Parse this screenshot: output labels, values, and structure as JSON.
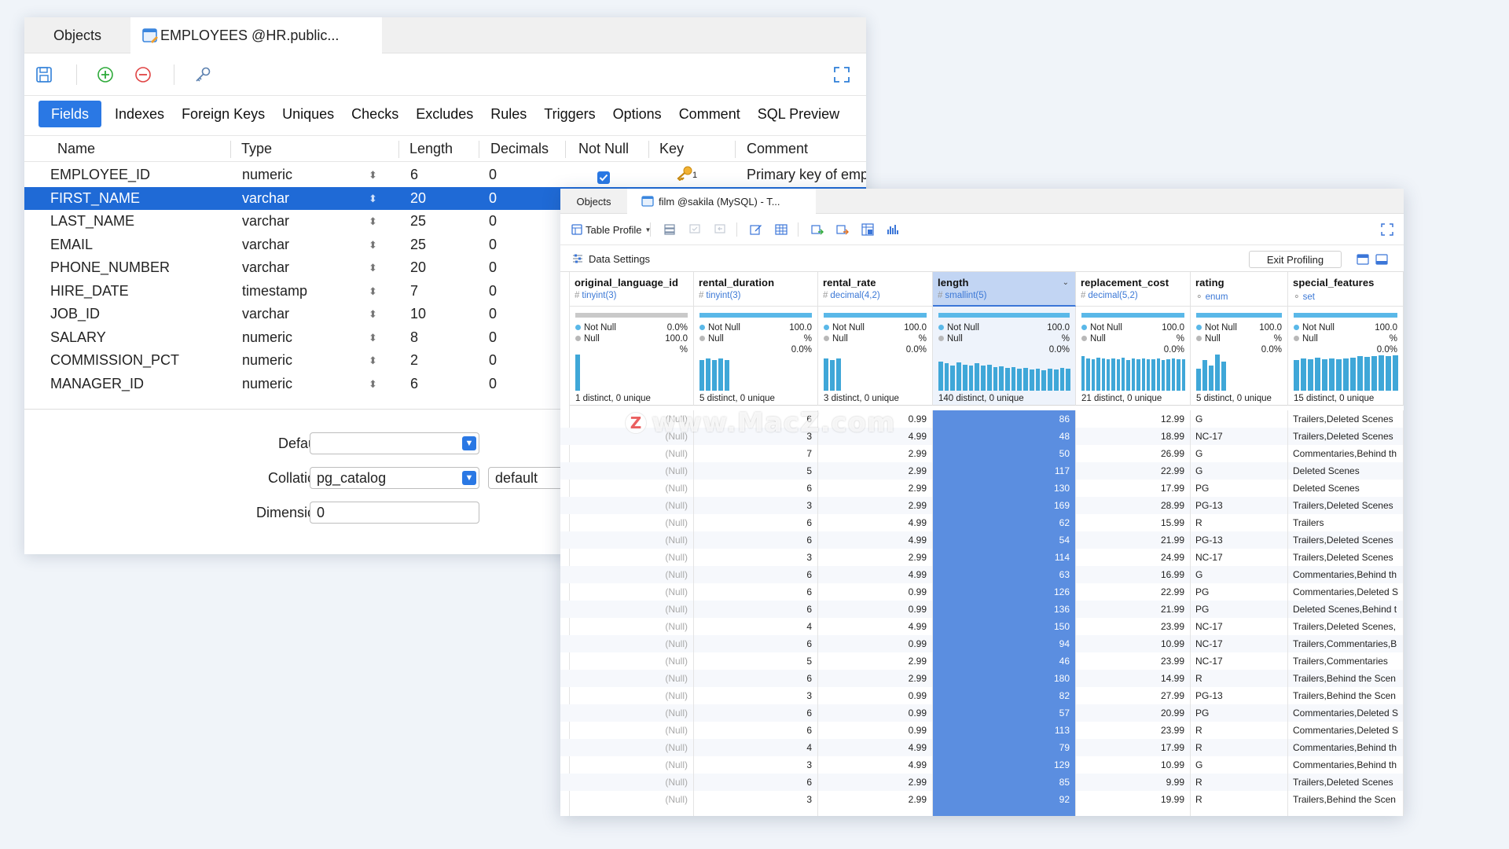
{
  "win1": {
    "tabs": {
      "objects": "Objects",
      "employees": "EMPLOYEES @HR.public..."
    },
    "subtabs": [
      "Fields",
      "Indexes",
      "Foreign Keys",
      "Uniques",
      "Checks",
      "Excludes",
      "Rules",
      "Triggers",
      "Options",
      "Comment",
      "SQL Preview"
    ],
    "columns": [
      "Name",
      "Type",
      "Length",
      "Decimals",
      "Not Null",
      "Key",
      "Comment"
    ],
    "fields": [
      {
        "name": "EMPLOYEE_ID",
        "type": "numeric",
        "length": "6",
        "decimals": "0",
        "comment": "Primary key of empt"
      },
      {
        "name": "FIRST_NAME",
        "type": "varchar",
        "length": "20",
        "decimals": "0",
        "comment": ""
      },
      {
        "name": "LAST_NAME",
        "type": "varchar",
        "length": "25",
        "decimals": "0",
        "comment": ""
      },
      {
        "name": "EMAIL",
        "type": "varchar",
        "length": "25",
        "decimals": "0",
        "comment": ""
      },
      {
        "name": "PHONE_NUMBER",
        "type": "varchar",
        "length": "20",
        "decimals": "0",
        "comment": ""
      },
      {
        "name": "HIRE_DATE",
        "type": "timestamp",
        "length": "7",
        "decimals": "0",
        "comment": ""
      },
      {
        "name": "JOB_ID",
        "type": "varchar",
        "length": "10",
        "decimals": "0",
        "comment": ""
      },
      {
        "name": "SALARY",
        "type": "numeric",
        "length": "8",
        "decimals": "0",
        "comment": ""
      },
      {
        "name": "COMMISSION_PCT",
        "type": "numeric",
        "length": "2",
        "decimals": "0",
        "comment": ""
      },
      {
        "name": "MANAGER_ID",
        "type": "numeric",
        "length": "6",
        "decimals": "0",
        "comment": ""
      }
    ],
    "key_index_label": "1",
    "props": {
      "default_label": "Default:",
      "default_value": "",
      "collation_label": "Collation:",
      "collation_value": "pg_catalog",
      "collation_extra": "default",
      "dimension_label": "Dimension:",
      "dimension_value": "0"
    }
  },
  "win2": {
    "tabs": {
      "objects": "Objects",
      "film": "film @sakila (MySQL) - T..."
    },
    "table_profile": "Table Profile",
    "data_settings": "Data Settings",
    "exit_profiling": "Exit Profiling",
    "columns": [
      {
        "name": "original_language_id",
        "type": "tinyint(3)",
        "notnull": "0.0%",
        "null": "100.0",
        "null_pct": "%",
        "distinct": "1 distinct, 0 unique"
      },
      {
        "name": "rental_duration",
        "type": "tinyint(3)",
        "notnull": "100.0",
        "notnull_pct": "%",
        "null": "0.0%",
        "distinct": "5 distinct, 0 unique"
      },
      {
        "name": "rental_rate",
        "type": "decimal(4,2)",
        "notnull": "100.0",
        "notnull_pct": "%",
        "null": "0.0%",
        "distinct": "3 distinct, 0 unique"
      },
      {
        "name": "length",
        "type": "smallint(5)",
        "notnull": "100.0",
        "notnull_pct": "%",
        "null": "0.0%",
        "distinct": "140 distinct, 0 unique"
      },
      {
        "name": "replacement_cost",
        "type": "decimal(5,2)",
        "notnull": "100.0",
        "notnull_pct": "%",
        "null": "0.0%",
        "distinct": "21 distinct, 0 unique"
      },
      {
        "name": "rating",
        "type": "enum",
        "notnull": "100.0",
        "notnull_pct": "%",
        "null": "0.0%",
        "distinct": "5 distinct, 0 unique"
      },
      {
        "name": "special_features",
        "type": "set",
        "notnull": "100.0",
        "notnull_pct": "%",
        "null": "0.0%",
        "distinct": "15 distinct, 0 unique"
      }
    ],
    "legend": {
      "not_null": "Not Null",
      "null": "Null"
    },
    "null_text": "(Null)",
    "rows": [
      [
        "6",
        "0.99",
        "86",
        "12.99",
        "G",
        "Trailers,Deleted Scenes"
      ],
      [
        "3",
        "4.99",
        "48",
        "18.99",
        "NC-17",
        "Trailers,Deleted Scenes"
      ],
      [
        "7",
        "2.99",
        "50",
        "26.99",
        "G",
        "Commentaries,Behind th"
      ],
      [
        "5",
        "2.99",
        "117",
        "22.99",
        "G",
        "Deleted Scenes"
      ],
      [
        "6",
        "2.99",
        "130",
        "17.99",
        "PG",
        "Deleted Scenes"
      ],
      [
        "3",
        "2.99",
        "169",
        "28.99",
        "PG-13",
        "Trailers,Deleted Scenes"
      ],
      [
        "6",
        "4.99",
        "62",
        "15.99",
        "R",
        "Trailers"
      ],
      [
        "6",
        "4.99",
        "54",
        "21.99",
        "PG-13",
        "Trailers,Deleted Scenes"
      ],
      [
        "3",
        "2.99",
        "114",
        "24.99",
        "NC-17",
        "Trailers,Deleted Scenes"
      ],
      [
        "6",
        "4.99",
        "63",
        "16.99",
        "G",
        "Commentaries,Behind th"
      ],
      [
        "6",
        "0.99",
        "126",
        "22.99",
        "PG",
        "Commentaries,Deleted S"
      ],
      [
        "6",
        "0.99",
        "136",
        "21.99",
        "PG",
        "Deleted Scenes,Behind t"
      ],
      [
        "4",
        "4.99",
        "150",
        "23.99",
        "NC-17",
        "Trailers,Deleted Scenes,"
      ],
      [
        "6",
        "0.99",
        "94",
        "10.99",
        "NC-17",
        "Trailers,Commentaries,B"
      ],
      [
        "5",
        "2.99",
        "46",
        "23.99",
        "NC-17",
        "Trailers,Commentaries"
      ],
      [
        "6",
        "2.99",
        "180",
        "14.99",
        "R",
        "Trailers,Behind the Scen"
      ],
      [
        "3",
        "0.99",
        "82",
        "27.99",
        "PG-13",
        "Trailers,Behind the Scen"
      ],
      [
        "6",
        "0.99",
        "57",
        "20.99",
        "PG",
        "Commentaries,Deleted S"
      ],
      [
        "6",
        "0.99",
        "113",
        "23.99",
        "R",
        "Commentaries,Deleted S"
      ],
      [
        "4",
        "4.99",
        "79",
        "17.99",
        "R",
        "Commentaries,Behind th"
      ],
      [
        "3",
        "4.99",
        "129",
        "10.99",
        "G",
        "Commentaries,Behind th"
      ],
      [
        "6",
        "2.99",
        "85",
        "9.99",
        "R",
        "Trailers,Deleted Scenes"
      ],
      [
        "3",
        "2.99",
        "92",
        "19.99",
        "R",
        "Trailers,Behind the Scen"
      ]
    ],
    "histograms": {
      "original_language_id": [
        1.0
      ],
      "rental_duration": [
        0.85,
        0.9,
        0.85,
        0.9,
        0.85
      ],
      "rental_rate": [
        0.9,
        0.85,
        0.9
      ],
      "length": [
        0.8,
        0.75,
        0.7,
        0.78,
        0.72,
        0.7,
        0.75,
        0.7,
        0.72,
        0.65,
        0.68,
        0.62,
        0.66,
        0.6,
        0.62,
        0.58,
        0.6,
        0.57,
        0.6,
        0.58,
        0.62,
        0.6
      ],
      "replacement_cost": [
        0.95,
        0.9,
        0.88,
        0.92,
        0.9,
        0.86,
        0.9,
        0.88,
        0.92,
        0.85,
        0.9,
        0.87,
        0.9,
        0.86,
        0.88,
        0.9,
        0.85,
        0.88,
        0.9,
        0.86,
        0.88
      ],
      "rating": [
        0.6,
        0.85,
        0.7,
        1.0,
        0.8
      ],
      "special_features": [
        0.85,
        0.9,
        0.88,
        0.92,
        0.86,
        0.9,
        0.88,
        0.9,
        0.92,
        0.95,
        0.93,
        0.96,
        0.98,
        0.95,
        0.97
      ]
    }
  },
  "watermark": {
    "logo": "Z",
    "text": "www.MacZ.com"
  },
  "colors": {
    "accent": "#2a78e4",
    "selected_row": "#1f6ad6",
    "length_column": "#5b8ee0",
    "histogram": "#3fa7d8"
  }
}
